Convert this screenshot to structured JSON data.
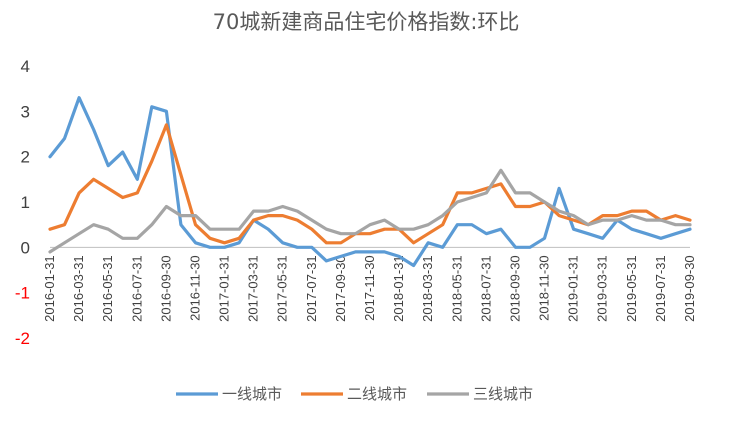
{
  "chart_data": {
    "type": "line",
    "title": "70城新建商品住宅价格指数:环比",
    "xlabel": "",
    "ylabel": "",
    "ylim": [
      -2,
      4
    ],
    "yticks": [
      "4",
      "3",
      "2",
      "1",
      "0",
      "-1",
      "-2"
    ],
    "grid": false,
    "legend_position": "bottom",
    "x_tick_labels": [
      "2016-01-31",
      "2016-03-31",
      "2016-05-31",
      "2016-07-31",
      "2016-09-30",
      "2016-11-30",
      "2017-01-31",
      "2017-03-31",
      "2017-05-31",
      "2017-07-31",
      "2017-09-30",
      "2017-11-30",
      "2018-01-31",
      "2018-03-31",
      "2018-05-31",
      "2018-07-31",
      "2018-09-30",
      "2018-11-30",
      "2019-01-31",
      "2019-03-31",
      "2019-05-31",
      "2019-07-31",
      "2019-09-30"
    ],
    "x": [
      "2016-01",
      "2016-02",
      "2016-03",
      "2016-04",
      "2016-05",
      "2016-06",
      "2016-07",
      "2016-08",
      "2016-09",
      "2016-10",
      "2016-11",
      "2016-12",
      "2017-01",
      "2017-02",
      "2017-03",
      "2017-04",
      "2017-05",
      "2017-06",
      "2017-07",
      "2017-08",
      "2017-09",
      "2017-10",
      "2017-11",
      "2017-12",
      "2018-01",
      "2018-02",
      "2018-03",
      "2018-04",
      "2018-05",
      "2018-06",
      "2018-07",
      "2018-08",
      "2018-09",
      "2018-10",
      "2018-11",
      "2018-12",
      "2019-01",
      "2019-02",
      "2019-03",
      "2019-04",
      "2019-05",
      "2019-06",
      "2019-07",
      "2019-08",
      "2019-09"
    ],
    "series": [
      {
        "name": "一线城市",
        "color": "#5B9BD5",
        "values": [
          2.0,
          2.4,
          3.3,
          2.6,
          1.8,
          2.1,
          1.5,
          3.1,
          3.0,
          0.5,
          0.1,
          0.0,
          0.0,
          0.1,
          0.6,
          0.4,
          0.1,
          0.0,
          0.0,
          -0.3,
          -0.2,
          -0.1,
          -0.1,
          -0.1,
          -0.2,
          -0.4,
          0.1,
          0.0,
          0.5,
          0.5,
          0.3,
          0.4,
          0.0,
          0.0,
          0.2,
          1.3,
          0.4,
          0.3,
          0.2,
          0.6,
          0.4,
          0.3,
          0.2,
          0.3,
          0.4
        ]
      },
      {
        "name": "二线城市",
        "color": "#ED7D31",
        "values": [
          0.4,
          0.5,
          1.2,
          1.5,
          1.3,
          1.1,
          1.2,
          1.9,
          2.7,
          1.6,
          0.5,
          0.2,
          0.1,
          0.2,
          0.6,
          0.7,
          0.7,
          0.6,
          0.4,
          0.1,
          0.1,
          0.3,
          0.3,
          0.4,
          0.4,
          0.1,
          0.3,
          0.5,
          1.2,
          1.2,
          1.3,
          1.4,
          0.9,
          0.9,
          1.0,
          0.7,
          0.6,
          0.5,
          0.7,
          0.7,
          0.8,
          0.8,
          0.6,
          0.7,
          0.6
        ]
      },
      {
        "name": "三线城市",
        "color": "#A5A5A5",
        "values": [
          -0.1,
          0.1,
          0.3,
          0.5,
          0.4,
          0.2,
          0.2,
          0.5,
          0.9,
          0.7,
          0.7,
          0.4,
          0.4,
          0.4,
          0.8,
          0.8,
          0.9,
          0.8,
          0.6,
          0.4,
          0.3,
          0.3,
          0.5,
          0.6,
          0.4,
          0.4,
          0.5,
          0.7,
          1.0,
          1.1,
          1.2,
          1.7,
          1.2,
          1.2,
          1.0,
          0.8,
          0.7,
          0.5,
          0.6,
          0.6,
          0.7,
          0.6,
          0.6,
          0.5,
          0.5
        ]
      }
    ]
  }
}
